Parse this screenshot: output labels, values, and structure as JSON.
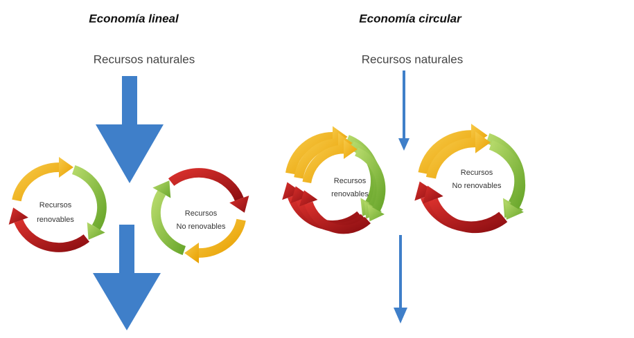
{
  "sections": [
    {
      "title": "Economía lineal",
      "source": "Recursos naturales",
      "cycles": [
        {
          "line1": "Recursos",
          "line2": "renovables"
        },
        {
          "line1": "Recursos",
          "line2": "No renovables"
        }
      ]
    },
    {
      "title": "Economía circular",
      "source": "Recursos naturales",
      "cycles": [
        {
          "line1": "Recursos",
          "line2": "renovables"
        },
        {
          "line1": "Recursos",
          "line2": "No renovables"
        }
      ]
    }
  ]
}
